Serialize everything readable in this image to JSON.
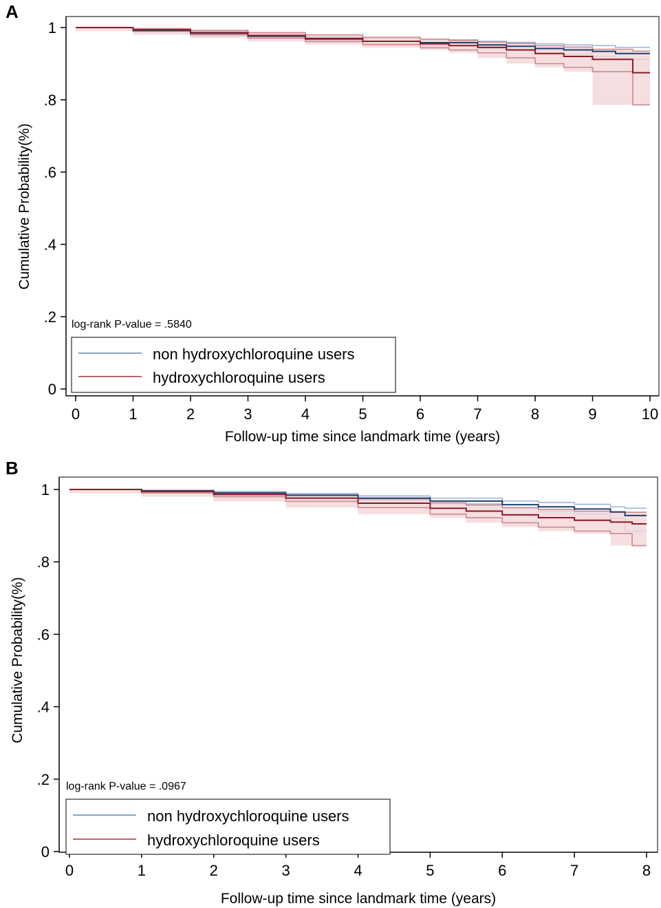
{
  "panels": [
    {
      "letter": "A",
      "pvalue_text": "log-rank P-value = .5840",
      "legend": [
        "non hydroxychloroquine users",
        "hydroxychloroquine users"
      ]
    },
    {
      "letter": "B",
      "pvalue_text": "log-rank P-value = .0967",
      "legend": [
        "non hydroxychloroquine users",
        "hydroxychloroquine users"
      ]
    }
  ],
  "colors": {
    "non_user_line": "#1f3f6e",
    "non_user_band": "#9ab4d8",
    "user_line": "#8b1a22",
    "user_band": "#c98a90",
    "user_band_fill": "#f3d6d8"
  },
  "chart_data": [
    {
      "type": "line",
      "xlabel": "Follow-up time since landmark time (years)",
      "ylabel": "Cumulative Probability(%)",
      "xlim": [
        0,
        10
      ],
      "ylim": [
        0,
        1
      ],
      "xticks": [
        0,
        1,
        2,
        3,
        4,
        5,
        6,
        7,
        8,
        9,
        10
      ],
      "yticks": [
        0,
        0.2,
        0.4,
        0.6,
        0.8,
        1
      ],
      "ytick_labels": [
        "0",
        ".2",
        ".4",
        ".6",
        ".8",
        "1"
      ],
      "grid": false,
      "legend_position": "bottom-left",
      "series": [
        {
          "name": "non hydroxychloroquine users",
          "x": [
            0,
            1,
            2,
            3,
            4,
            5,
            6,
            7,
            7.5,
            8,
            8.5,
            9,
            9.4,
            10
          ],
          "y": [
            1.0,
            0.992,
            0.984,
            0.976,
            0.968,
            0.962,
            0.958,
            0.952,
            0.948,
            0.942,
            0.938,
            0.934,
            0.928,
            0.928
          ],
          "ci_upper": [
            1.0,
            0.996,
            0.99,
            0.983,
            0.976,
            0.97,
            0.966,
            0.962,
            0.959,
            0.955,
            0.952,
            0.95,
            0.945,
            0.945
          ],
          "ci_lower": [
            1.0,
            0.988,
            0.978,
            0.969,
            0.96,
            0.954,
            0.95,
            0.942,
            0.936,
            0.93,
            0.926,
            0.92,
            0.912,
            0.912
          ]
        },
        {
          "name": "hydroxychloroquine users",
          "x": [
            0,
            1,
            2,
            3,
            4,
            5,
            6,
            6.5,
            7,
            7.5,
            8,
            8.5,
            9,
            9.7,
            10
          ],
          "y": [
            1.0,
            0.994,
            0.986,
            0.978,
            0.97,
            0.962,
            0.955,
            0.95,
            0.945,
            0.938,
            0.928,
            0.92,
            0.912,
            0.875,
            0.875
          ],
          "ci_upper": [
            1.0,
            0.997,
            0.992,
            0.986,
            0.98,
            0.973,
            0.968,
            0.964,
            0.96,
            0.956,
            0.95,
            0.946,
            0.94,
            0.935,
            0.935
          ],
          "ci_lower": [
            1.0,
            0.99,
            0.98,
            0.971,
            0.962,
            0.953,
            0.944,
            0.938,
            0.93,
            0.916,
            0.9,
            0.89,
            0.878,
            0.786,
            0.786
          ]
        }
      ]
    },
    {
      "type": "line",
      "xlabel": "Follow-up time since landmark time (years)",
      "ylabel": "Cumulative Probability(%)",
      "xlim": [
        0,
        8
      ],
      "ylim": [
        0,
        1
      ],
      "xticks": [
        0,
        1,
        2,
        3,
        4,
        5,
        6,
        7,
        8
      ],
      "yticks": [
        0,
        0.2,
        0.4,
        0.6,
        0.8,
        1
      ],
      "ytick_labels": [
        "0",
        ".2",
        ".4",
        ".6",
        ".8",
        "1"
      ],
      "grid": false,
      "legend_position": "bottom-left",
      "series": [
        {
          "name": "non hydroxychloroquine users",
          "x": [
            0,
            1,
            2,
            3,
            4,
            5,
            6,
            6.5,
            7,
            7.5,
            7.7,
            8
          ],
          "y": [
            1.0,
            0.996,
            0.99,
            0.984,
            0.976,
            0.968,
            0.958,
            0.952,
            0.946,
            0.938,
            0.928,
            0.928
          ],
          "ci_upper": [
            1.0,
            0.998,
            0.994,
            0.989,
            0.982,
            0.976,
            0.968,
            0.964,
            0.959,
            0.952,
            0.948,
            0.948
          ],
          "ci_lower": [
            1.0,
            0.994,
            0.986,
            0.978,
            0.97,
            0.96,
            0.948,
            0.94,
            0.932,
            0.92,
            0.885,
            0.885
          ]
        },
        {
          "name": "hydroxychloroquine users",
          "x": [
            0,
            1,
            2,
            3,
            4,
            5,
            5.5,
            6,
            6.5,
            7,
            7.5,
            7.8,
            8
          ],
          "y": [
            1.0,
            0.994,
            0.986,
            0.976,
            0.962,
            0.948,
            0.94,
            0.93,
            0.922,
            0.915,
            0.91,
            0.905,
            0.905
          ],
          "ci_upper": [
            1.0,
            0.997,
            0.992,
            0.985,
            0.974,
            0.963,
            0.957,
            0.95,
            0.945,
            0.94,
            0.937,
            0.937,
            0.937
          ],
          "ci_lower": [
            1.0,
            0.99,
            0.98,
            0.967,
            0.95,
            0.932,
            0.922,
            0.908,
            0.896,
            0.885,
            0.878,
            0.845,
            0.845
          ]
        }
      ]
    }
  ]
}
